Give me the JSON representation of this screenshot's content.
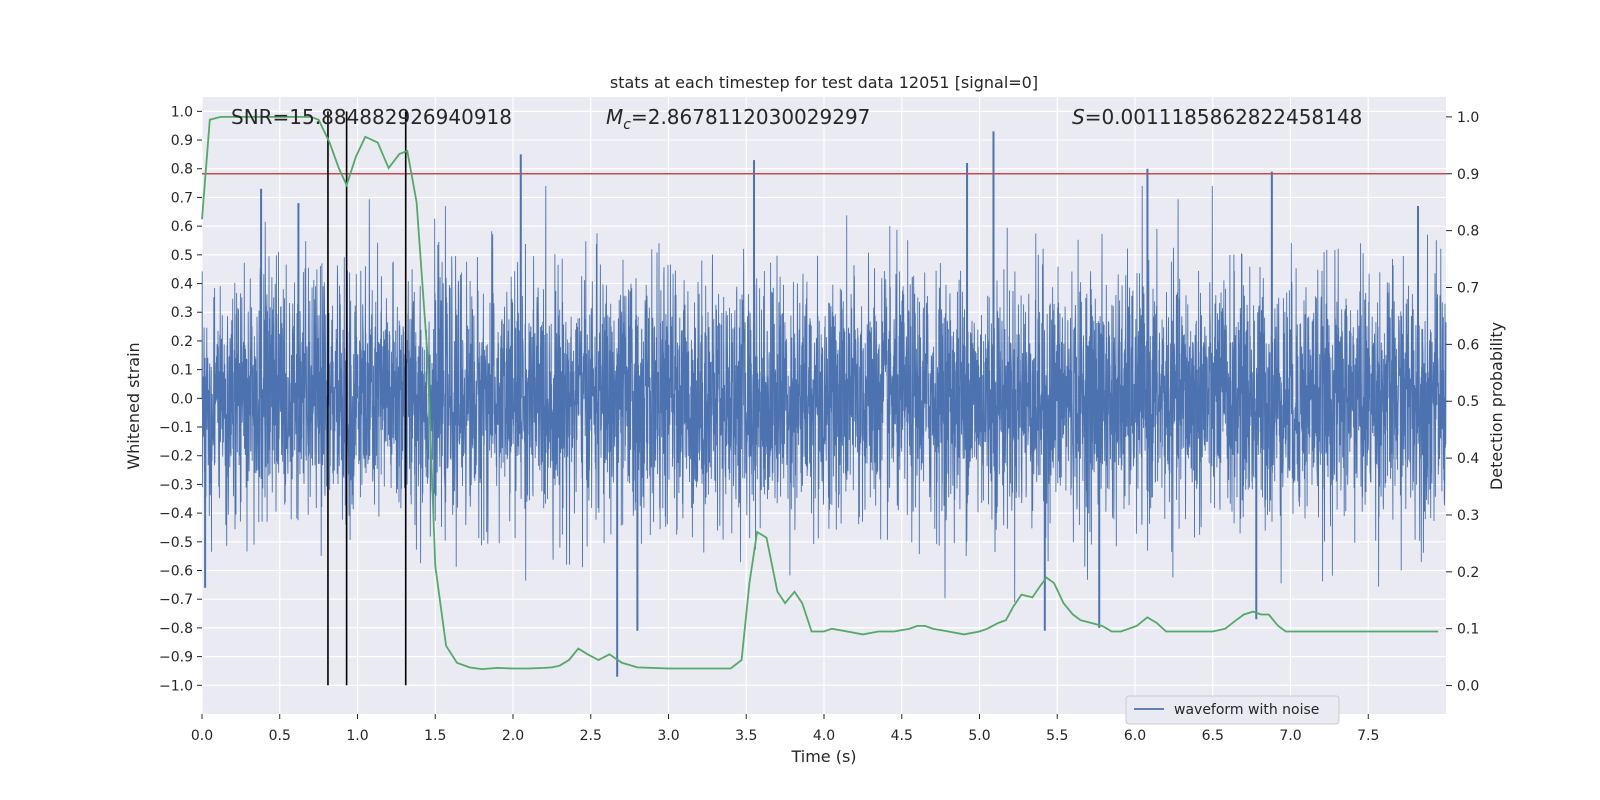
{
  "chart_data": {
    "type": "line",
    "title": "stats at each timestep for test data 12051 [signal=0]",
    "xlabel": "Time (s)",
    "ylabel": "Whitened strain",
    "ylabel_right": "Detection probability",
    "xlim": [
      0,
      8
    ],
    "ylim": [
      -1.1,
      1.05
    ],
    "ylim_right": [
      -0.05,
      1.035
    ],
    "x_ticks": [
      "0.0",
      "0.5",
      "1.0",
      "1.5",
      "2.0",
      "2.5",
      "3.0",
      "3.5",
      "4.0",
      "4.5",
      "5.0",
      "5.5",
      "6.0",
      "6.5",
      "7.0",
      "7.5"
    ],
    "x_tick_values": [
      0,
      0.5,
      1,
      1.5,
      2,
      2.5,
      3,
      3.5,
      4,
      4.5,
      5,
      5.5,
      6,
      6.5,
      7,
      7.5
    ],
    "y_ticks": [
      "1.0",
      "0.9",
      "0.8",
      "0.7",
      "0.6",
      "0.5",
      "0.4",
      "0.3",
      "0.2",
      "0.1",
      "0.0",
      "−0.1",
      "−0.2",
      "−0.3",
      "−0.4",
      "−0.5",
      "−0.6",
      "−0.7",
      "−0.8",
      "−0.9",
      "−1.0"
    ],
    "y_tick_values": [
      1.0,
      0.9,
      0.8,
      0.7,
      0.6,
      0.5,
      0.4,
      0.3,
      0.2,
      0.1,
      0.0,
      -0.1,
      -0.2,
      -0.3,
      -0.4,
      -0.5,
      -0.6,
      -0.7,
      -0.8,
      -0.9,
      -1.0
    ],
    "y_right_ticks": [
      "1.0",
      "0.9",
      "0.8",
      "0.7",
      "0.6",
      "0.5",
      "0.4",
      "0.3",
      "0.2",
      "0.1",
      "0.0"
    ],
    "y_right_tick_values": [
      1.0,
      0.9,
      0.8,
      0.7,
      0.6,
      0.5,
      0.4,
      0.3,
      0.2,
      0.1,
      0.0
    ],
    "annotations": [
      {
        "text": "SNR=15.884882926940918",
        "x": 0.19
      },
      {
        "text_prefix": "M",
        "text_sub": "c",
        "text_rest": "=2.8678112030029297",
        "x": 2.6
      },
      {
        "text_prefix": "S",
        "text_sub": "",
        "text_rest": "=0.0011185862822458148",
        "x": 5.6
      }
    ],
    "threshold": {
      "value": 0.9,
      "axis": "right",
      "color": "#c44e52"
    },
    "vertical_lines": [
      0.81,
      0.93,
      1.31
    ],
    "waveform": {
      "name": "waveform with noise",
      "color": "#4c72b0",
      "n_samples": 16384,
      "typical_amplitude": 0.2,
      "peaks": [
        {
          "x": 0.38,
          "y": 0.73
        },
        {
          "x": 0.62,
          "y": 0.68
        },
        {
          "x": 2.05,
          "y": 0.85
        },
        {
          "x": 3.55,
          "y": 0.83
        },
        {
          "x": 4.92,
          "y": 0.82
        },
        {
          "x": 5.09,
          "y": 0.93
        },
        {
          "x": 6.08,
          "y": 0.8
        },
        {
          "x": 6.88,
          "y": 0.79
        },
        {
          "x": 7.82,
          "y": 0.67
        },
        {
          "x": 2.67,
          "y": -0.97
        },
        {
          "x": 2.8,
          "y": -0.81
        },
        {
          "x": 5.42,
          "y": -0.81
        },
        {
          "x": 6.78,
          "y": -0.77
        },
        {
          "x": 5.77,
          "y": -0.8
        },
        {
          "x": 0.02,
          "y": -0.66
        }
      ]
    },
    "detection_probability": {
      "color": "#55a868",
      "x": [
        0.0,
        0.05,
        0.12,
        0.2,
        0.3,
        0.4,
        0.5,
        0.6,
        0.7,
        0.75,
        0.82,
        0.88,
        0.93,
        0.99,
        1.05,
        1.13,
        1.2,
        1.27,
        1.32,
        1.38,
        1.45,
        1.5,
        1.57,
        1.64,
        1.72,
        1.8,
        1.9,
        2.0,
        2.1,
        2.2,
        2.25,
        2.3,
        2.36,
        2.42,
        2.48,
        2.55,
        2.62,
        2.7,
        2.8,
        3.0,
        3.2,
        3.4,
        3.47,
        3.52,
        3.57,
        3.63,
        3.7,
        3.75,
        3.81,
        3.86,
        3.92,
        4.0,
        4.05,
        4.15,
        4.25,
        4.35,
        4.45,
        4.55,
        4.6,
        4.65,
        4.7,
        4.8,
        4.9,
        5.0,
        5.05,
        5.12,
        5.17,
        5.22,
        5.27,
        5.34,
        5.39,
        5.43,
        5.48,
        5.54,
        5.6,
        5.65,
        5.72,
        5.79,
        5.85,
        5.91,
        5.96,
        6.01,
        6.08,
        6.14,
        6.2,
        6.3,
        6.4,
        6.5,
        6.58,
        6.65,
        6.7,
        6.76,
        6.81,
        6.86,
        6.92,
        6.97,
        7.02,
        7.1,
        7.3,
        7.5,
        7.7,
        7.9,
        7.95
      ],
      "y": [
        0.82,
        0.995,
        1.0,
        1.0,
        1.0,
        1.0,
        1.0,
        1.0,
        1.0,
        0.995,
        0.955,
        0.91,
        0.88,
        0.93,
        0.965,
        0.955,
        0.91,
        0.935,
        0.94,
        0.85,
        0.58,
        0.21,
        0.07,
        0.04,
        0.032,
        0.029,
        0.031,
        0.03,
        0.03,
        0.031,
        0.032,
        0.035,
        0.045,
        0.065,
        0.055,
        0.045,
        0.055,
        0.04,
        0.032,
        0.03,
        0.03,
        0.03,
        0.045,
        0.18,
        0.27,
        0.26,
        0.165,
        0.145,
        0.165,
        0.145,
        0.095,
        0.095,
        0.1,
        0.095,
        0.09,
        0.095,
        0.095,
        0.1,
        0.105,
        0.105,
        0.1,
        0.095,
        0.09,
        0.095,
        0.1,
        0.11,
        0.115,
        0.14,
        0.16,
        0.155,
        0.175,
        0.19,
        0.18,
        0.145,
        0.125,
        0.115,
        0.11,
        0.105,
        0.095,
        0.095,
        0.1,
        0.105,
        0.12,
        0.11,
        0.095,
        0.095,
        0.095,
        0.095,
        0.1,
        0.115,
        0.125,
        0.13,
        0.125,
        0.125,
        0.105,
        0.095,
        0.095,
        0.095,
        0.095,
        0.095,
        0.095,
        0.095,
        0.095
      ]
    },
    "legend": {
      "label": "waveform with noise",
      "placement": "lower-right"
    },
    "grid": true
  }
}
